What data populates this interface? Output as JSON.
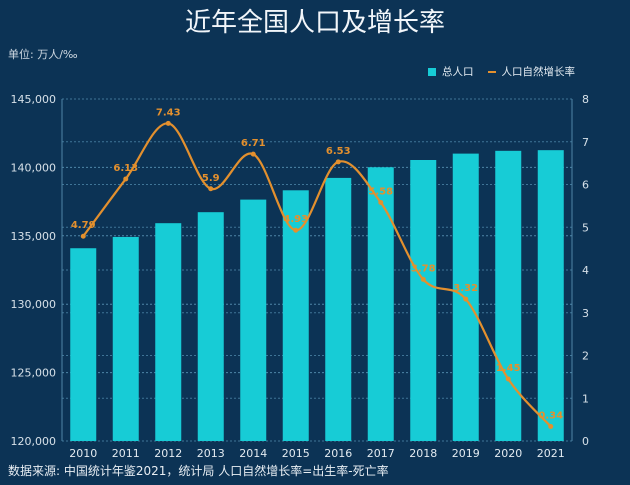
{
  "title": "近年全国人口及增长率",
  "unit": "单位: 万人/‰",
  "footer": "数据来源: 中国统计年鉴2021，统计局  人口自然增长率=出生率-死亡率",
  "colors": {
    "bar": "#17ccd6",
    "line": "#e3902e",
    "background": "#0c3355"
  },
  "chart_data": {
    "type": "bar+line",
    "title": "近年全国人口及增长率",
    "categories": [
      "2010",
      "2011",
      "2012",
      "2013",
      "2014",
      "2015",
      "2016",
      "2017",
      "2018",
      "2019",
      "2020",
      "2021"
    ],
    "series": [
      {
        "name": "总人口",
        "type": "bar",
        "axis": "left",
        "values": [
          134091,
          134916,
          135922,
          136726,
          137646,
          138326,
          139232,
          140011,
          140541,
          141008,
          141212,
          141260
        ]
      },
      {
        "name": "人口自然增长率",
        "type": "line",
        "axis": "right",
        "values": [
          4.79,
          6.13,
          7.43,
          5.9,
          6.71,
          4.93,
          6.53,
          5.58,
          3.78,
          3.32,
          1.45,
          0.34
        ],
        "labels": [
          "4.79",
          "6.13",
          "7.43",
          "5.9",
          "6.71",
          "4.93",
          "6.53",
          "5.58",
          "3.78",
          "3.32",
          "1.45",
          "0.34"
        ]
      }
    ],
    "left_axis": {
      "ylim": [
        120000,
        145000
      ],
      "ticks": [
        "120,000",
        "125,000",
        "130,000",
        "135,000",
        "140,000",
        "145,000"
      ]
    },
    "right_axis": {
      "ylim": [
        0,
        8
      ],
      "ticks": [
        "0",
        "1",
        "2",
        "3",
        "4",
        "5",
        "6",
        "7",
        "8"
      ]
    },
    "grid": true,
    "legend": "top-right"
  }
}
